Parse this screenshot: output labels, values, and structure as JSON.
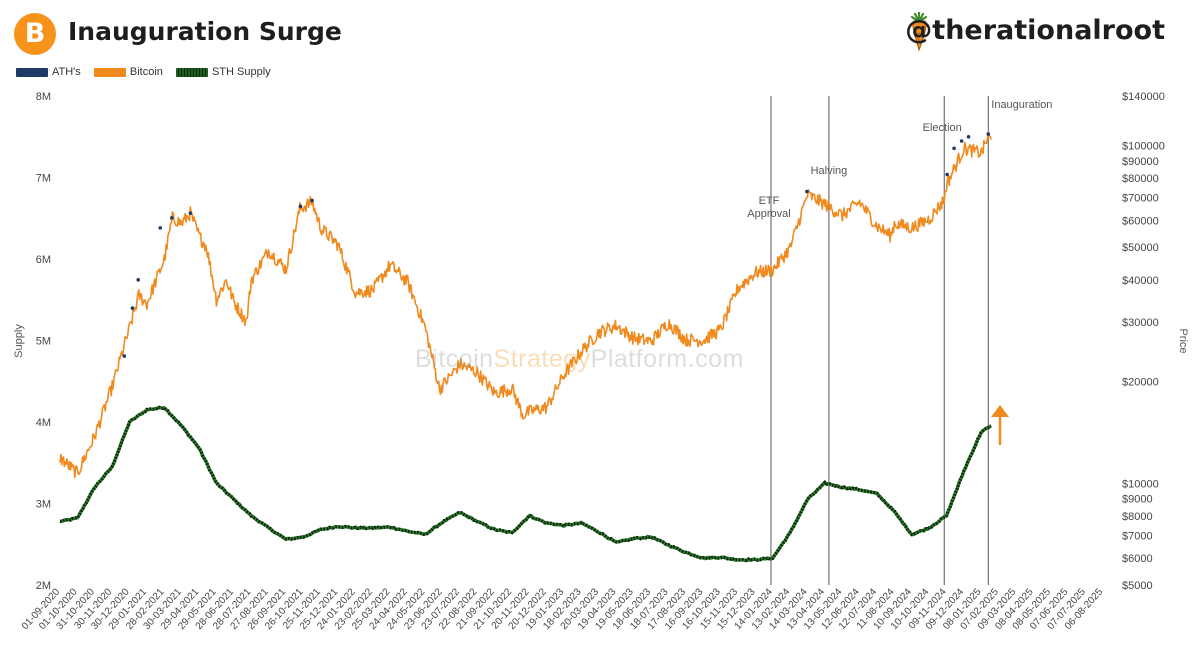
{
  "header": {
    "logo_symbol": "B",
    "title": "Inauguration Surge",
    "handle": "@therationalroot",
    "handle_icon": "carrot-icon"
  },
  "legend": [
    {
      "label": "ATH's",
      "color": "#1f3a66"
    },
    {
      "label": "Bitcoin",
      "color": "#f08a1e"
    },
    {
      "label": "STH Supply",
      "color": "#1e5c1e"
    }
  ],
  "watermark": {
    "part1": "Bitcoin",
    "part2": "Strategy",
    "part3": "Platform.com"
  },
  "chart_data": {
    "type": "line",
    "title": "Inauguration Surge",
    "y_left_label": "Supply",
    "y_right_label": "Price",
    "y_left_ticks": [
      "2M",
      "3M",
      "4M",
      "5M",
      "6M",
      "7M",
      "8M"
    ],
    "y_left_range": [
      2000000,
      8000000
    ],
    "y_right_scale": "log",
    "y_right_range": [
      5000,
      140000
    ],
    "y_right_ticks": [
      "$5000",
      "$6000",
      "$7000",
      "$8000",
      "$9000",
      "$10000",
      "$20000",
      "$30000",
      "$40000",
      "$50000",
      "$60000",
      "$70000",
      "$80000",
      "$90000",
      "$100000",
      "$140000"
    ],
    "x_ticks": [
      "01-09-2020",
      "01-10-2020",
      "31-10-2020",
      "30-11-2020",
      "30-12-2020",
      "29-01-2021",
      "28-02-2021",
      "30-03-2021",
      "29-04-2021",
      "29-05-2021",
      "28-06-2021",
      "28-07-2021",
      "27-08-2021",
      "26-09-2021",
      "26-10-2021",
      "25-11-2021",
      "25-12-2021",
      "24-01-2022",
      "23-02-2022",
      "25-03-2022",
      "24-04-2022",
      "24-05-2022",
      "23-06-2022",
      "23-07-2022",
      "22-08-2022",
      "21-09-2022",
      "21-10-2022",
      "20-11-2022",
      "20-12-2022",
      "19-01-2023",
      "18-02-2023",
      "20-03-2023",
      "19-04-2023",
      "19-05-2023",
      "18-06-2023",
      "18-07-2023",
      "17-08-2023",
      "16-09-2023",
      "16-10-2023",
      "15-11-2023",
      "15-12-2023",
      "14-01-2024",
      "13-02-2024",
      "14-03-2024",
      "13-04-2024",
      "13-05-2024",
      "12-06-2024",
      "12-07-2024",
      "11-08-2024",
      "10-09-2024",
      "10-10-2024",
      "09-11-2024",
      "09-12-2024",
      "08-01-2025",
      "07-02-2025",
      "09-03-2025",
      "08-04-2025",
      "08-05-2025",
      "07-06-2025",
      "07-07-2025",
      "06-08-2025"
    ],
    "series": [
      {
        "name": "Bitcoin",
        "axis": "right",
        "color": "#f08a1e",
        "points": [
          [
            "01-09-2020",
            11900
          ],
          [
            "01-10-2020",
            10700
          ],
          [
            "31-10-2020",
            13800
          ],
          [
            "30-11-2020",
            19300
          ],
          [
            "30-12-2020",
            28800
          ],
          [
            "15-01-2021",
            36000
          ],
          [
            "29-01-2021",
            34000
          ],
          [
            "28-02-2021",
            46000
          ],
          [
            "14-03-2021",
            61000
          ],
          [
            "30-03-2021",
            58800
          ],
          [
            "14-04-2021",
            63000
          ],
          [
            "29-04-2021",
            54000
          ],
          [
            "12-05-2021",
            50000
          ],
          [
            "29-05-2021",
            35000
          ],
          [
            "15-06-2021",
            40000
          ],
          [
            "28-06-2021",
            34500
          ],
          [
            "20-07-2021",
            30000
          ],
          [
            "28-07-2021",
            40000
          ],
          [
            "27-08-2021",
            48900
          ],
          [
            "26-09-2021",
            43000
          ],
          [
            "20-10-2021",
            65000
          ],
          [
            "10-11-2021",
            68000
          ],
          [
            "25-11-2021",
            57000
          ],
          [
            "25-12-2021",
            50800
          ],
          [
            "24-01-2022",
            36700
          ],
          [
            "23-02-2022",
            37300
          ],
          [
            "25-03-2022",
            44300
          ],
          [
            "24-04-2022",
            39400
          ],
          [
            "24-05-2022",
            29000
          ],
          [
            "18-06-2022",
            19000
          ],
          [
            "23-07-2022",
            22500
          ],
          [
            "22-08-2022",
            21300
          ],
          [
            "21-09-2022",
            18500
          ],
          [
            "21-10-2022",
            19100
          ],
          [
            "09-11-2022",
            15900
          ],
          [
            "20-11-2022",
            16300
          ],
          [
            "20-12-2022",
            16800
          ],
          [
            "19-01-2023",
            21000
          ],
          [
            "18-02-2023",
            24600
          ],
          [
            "20-03-2023",
            28000
          ],
          [
            "19-04-2023",
            29300
          ],
          [
            "19-05-2023",
            26900
          ],
          [
            "18-06-2023",
            26300
          ],
          [
            "18-07-2023",
            29900
          ],
          [
            "17-08-2023",
            26600
          ],
          [
            "16-09-2023",
            26500
          ],
          [
            "16-10-2023",
            28500
          ],
          [
            "15-11-2023",
            37800
          ],
          [
            "15-12-2023",
            42000
          ],
          [
            "14-01-2024",
            42800
          ],
          [
            "13-02-2024",
            49700
          ],
          [
            "14-03-2024",
            71500
          ],
          [
            "13-04-2024",
            67000
          ],
          [
            "13-05-2024",
            62000
          ],
          [
            "12-06-2024",
            68000
          ],
          [
            "12-07-2024",
            57700
          ],
          [
            "05-08-2024",
            54000
          ],
          [
            "11-08-2024",
            58700
          ],
          [
            "10-09-2024",
            57000
          ],
          [
            "10-10-2024",
            60500
          ],
          [
            "05-11-2024",
            69000
          ],
          [
            "09-11-2024",
            76500
          ],
          [
            "09-12-2024",
            98000
          ],
          [
            "08-01-2025",
            95000
          ],
          [
            "20-01-2025",
            106000
          ],
          [
            "25-01-2025",
            104000
          ]
        ]
      },
      {
        "name": "STH Supply",
        "axis": "left",
        "color": "#1e5c1e",
        "points": [
          [
            "01-09-2020",
            2780000
          ],
          [
            "01-10-2020",
            2820000
          ],
          [
            "31-10-2020",
            3200000
          ],
          [
            "30-11-2020",
            3450000
          ],
          [
            "30-12-2020",
            4000000
          ],
          [
            "29-01-2021",
            4150000
          ],
          [
            "28-02-2021",
            4180000
          ],
          [
            "30-03-2021",
            3950000
          ],
          [
            "29-04-2021",
            3680000
          ],
          [
            "29-05-2021",
            3250000
          ],
          [
            "28-06-2021",
            3050000
          ],
          [
            "28-07-2021",
            2850000
          ],
          [
            "27-08-2021",
            2700000
          ],
          [
            "26-09-2021",
            2560000
          ],
          [
            "26-10-2021",
            2590000
          ],
          [
            "25-11-2021",
            2680000
          ],
          [
            "25-12-2021",
            2720000
          ],
          [
            "24-01-2022",
            2700000
          ],
          [
            "23-02-2022",
            2700000
          ],
          [
            "25-03-2022",
            2710000
          ],
          [
            "24-04-2022",
            2660000
          ],
          [
            "24-05-2022",
            2620000
          ],
          [
            "23-06-2022",
            2770000
          ],
          [
            "23-07-2022",
            2890000
          ],
          [
            "22-08-2022",
            2780000
          ],
          [
            "21-09-2022",
            2680000
          ],
          [
            "21-10-2022",
            2640000
          ],
          [
            "20-11-2022",
            2850000
          ],
          [
            "20-12-2022",
            2760000
          ],
          [
            "19-01-2023",
            2730000
          ],
          [
            "18-02-2023",
            2760000
          ],
          [
            "20-03-2023",
            2650000
          ],
          [
            "19-04-2023",
            2520000
          ],
          [
            "19-05-2023",
            2570000
          ],
          [
            "18-06-2023",
            2590000
          ],
          [
            "18-07-2023",
            2490000
          ],
          [
            "17-08-2023",
            2400000
          ],
          [
            "16-09-2023",
            2330000
          ],
          [
            "16-10-2023",
            2340000
          ],
          [
            "15-11-2023",
            2310000
          ],
          [
            "15-12-2023",
            2310000
          ],
          [
            "14-01-2024",
            2330000
          ],
          [
            "13-02-2024",
            2640000
          ],
          [
            "14-03-2024",
            3050000
          ],
          [
            "13-04-2024",
            3250000
          ],
          [
            "13-05-2024",
            3200000
          ],
          [
            "12-06-2024",
            3170000
          ],
          [
            "12-07-2024",
            3120000
          ],
          [
            "11-08-2024",
            2900000
          ],
          [
            "10-09-2024",
            2620000
          ],
          [
            "10-10-2024",
            2700000
          ],
          [
            "09-11-2024",
            2850000
          ],
          [
            "09-12-2024",
            3400000
          ],
          [
            "08-01-2025",
            3880000
          ],
          [
            "25-01-2025",
            3950000
          ]
        ]
      }
    ],
    "ath_points": [
      [
        "21-12-2020",
        23800
      ],
      [
        "04-01-2021",
        33000
      ],
      [
        "14-01-2021",
        40000
      ],
      [
        "21-02-2021",
        57000
      ],
      [
        "13-03-2021",
        61000
      ],
      [
        "14-04-2021",
        63000
      ],
      [
        "21-10-2021",
        66000
      ],
      [
        "10-11-2021",
        68700
      ],
      [
        "13-03-2024",
        73000
      ],
      [
        "10-11-2024",
        82000
      ],
      [
        "22-11-2024",
        98000
      ],
      [
        "05-12-2024",
        103000
      ],
      [
        "17-12-2024",
        106000
      ],
      [
        "20-01-2025",
        108000
      ]
    ],
    "events": [
      {
        "label": "ETF Approval",
        "date": "11-01-2024"
      },
      {
        "label": "Halving",
        "date": "20-04-2024"
      },
      {
        "label": "Election",
        "date": "05-11-2024"
      },
      {
        "label": "Inauguration",
        "date": "20-01-2025"
      }
    ]
  }
}
